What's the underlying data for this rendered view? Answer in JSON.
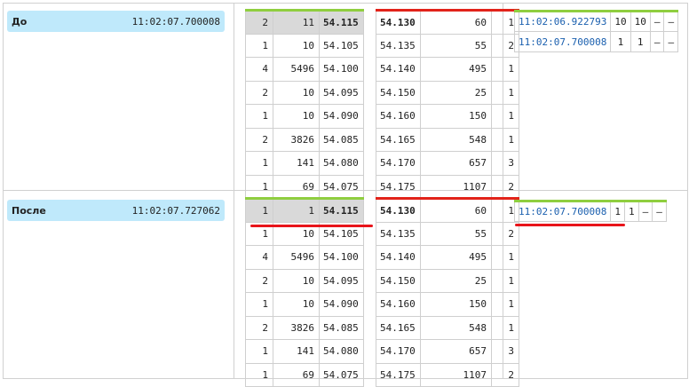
{
  "sections": [
    {
      "label": "До",
      "time": "11:02:07.700008",
      "bids": [
        [
          "2",
          "11",
          "54.115"
        ],
        [
          "1",
          "10",
          "54.105"
        ],
        [
          "4",
          "5496",
          "54.100"
        ],
        [
          "2",
          "10",
          "54.095"
        ],
        [
          "1",
          "10",
          "54.090"
        ],
        [
          "2",
          "3826",
          "54.085"
        ],
        [
          "1",
          "141",
          "54.080"
        ],
        [
          "1",
          "69",
          "54.075"
        ]
      ],
      "asks": [
        [
          "54.130",
          "60",
          "1"
        ],
        [
          "54.135",
          "55",
          "2"
        ],
        [
          "54.140",
          "495",
          "1"
        ],
        [
          "54.150",
          "25",
          "1"
        ],
        [
          "54.160",
          "150",
          "1"
        ],
        [
          "54.165",
          "548",
          "1"
        ],
        [
          "54.170",
          "657",
          "3"
        ],
        [
          "54.175",
          "1107",
          "2"
        ]
      ],
      "trades": [
        [
          "11:02:06.922793",
          "10",
          "10",
          "–",
          "–"
        ],
        [
          "11:02:07.700008",
          "1",
          "1",
          "–",
          "–"
        ]
      ]
    },
    {
      "label": "После",
      "time": "11:02:07.727062",
      "bids": [
        [
          "1",
          "1",
          "54.115"
        ],
        [
          "1",
          "10",
          "54.105"
        ],
        [
          "4",
          "5496",
          "54.100"
        ],
        [
          "2",
          "10",
          "54.095"
        ],
        [
          "1",
          "10",
          "54.090"
        ],
        [
          "2",
          "3826",
          "54.085"
        ],
        [
          "1",
          "141",
          "54.080"
        ],
        [
          "1",
          "69",
          "54.075"
        ]
      ],
      "asks": [
        [
          "54.130",
          "60",
          "1"
        ],
        [
          "54.135",
          "55",
          "2"
        ],
        [
          "54.140",
          "495",
          "1"
        ],
        [
          "54.150",
          "25",
          "1"
        ],
        [
          "54.160",
          "150",
          "1"
        ],
        [
          "54.165",
          "548",
          "1"
        ],
        [
          "54.170",
          "657",
          "3"
        ],
        [
          "54.175",
          "1107",
          "2"
        ]
      ],
      "trades": [
        [
          "11:02:07.700008",
          "1",
          "1",
          "–",
          "–"
        ]
      ]
    }
  ]
}
